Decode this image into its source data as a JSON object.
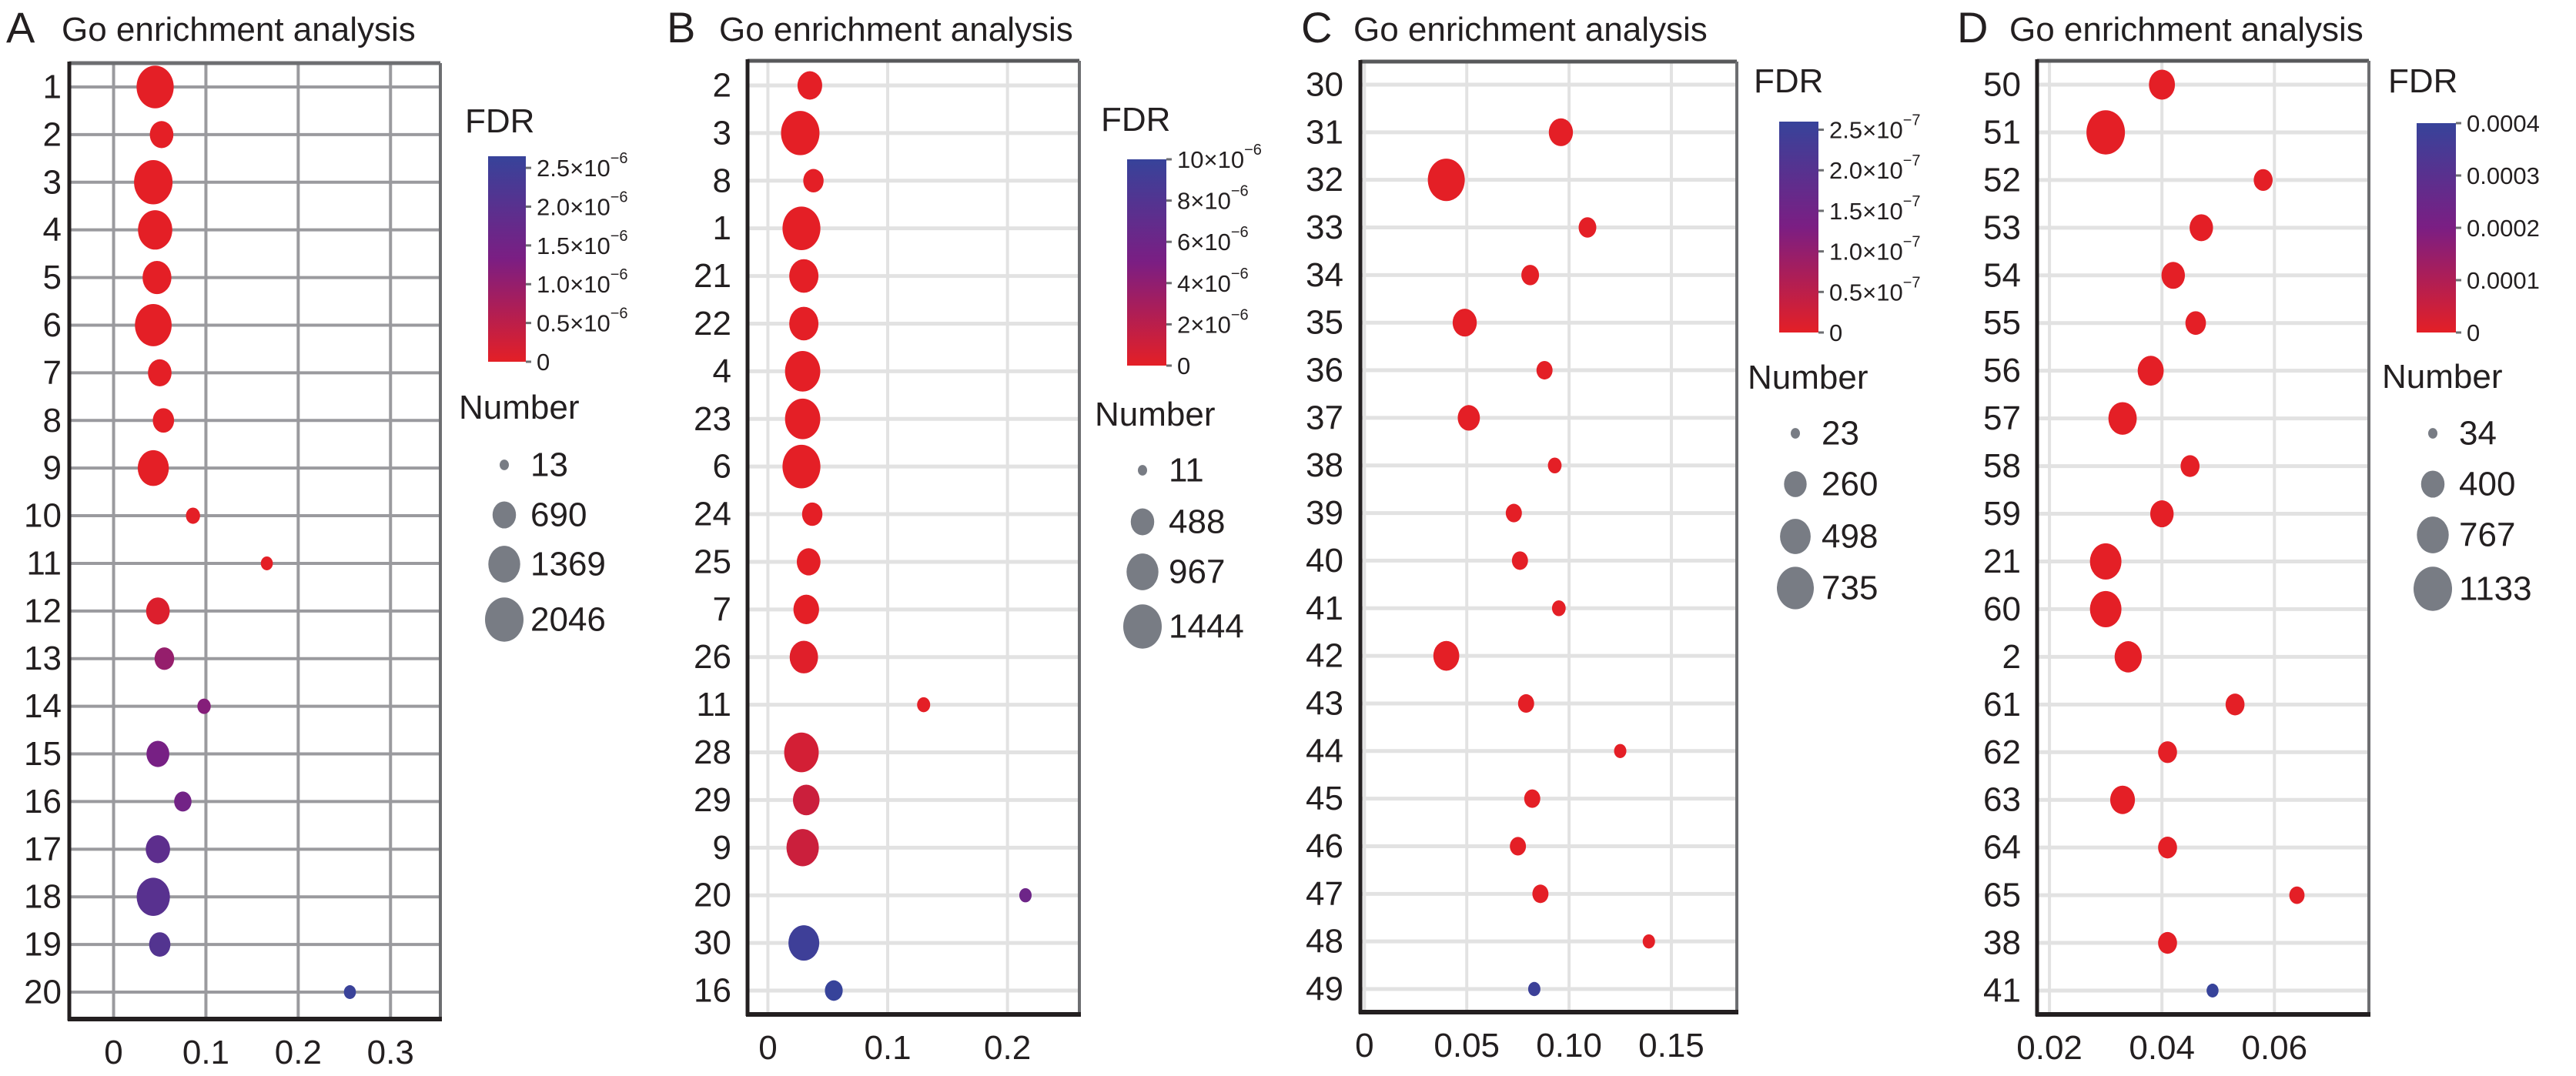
{
  "figure": {
    "panels": [
      "A",
      "B",
      "C",
      "D"
    ]
  },
  "chart_data": [
    {
      "type": "scatter",
      "panel": "A",
      "title": "Go enrichment analysis",
      "xlabel": "",
      "ylabel": "",
      "x_ticks": [
        "0",
        "0.1",
        "0.2",
        "0.3"
      ],
      "x_tick_values": [
        0,
        0.1,
        0.2,
        0.3
      ],
      "xlim": [
        -0.048,
        0.354
      ],
      "grid": true,
      "grid_style": "dark",
      "categories": [
        "1",
        "2",
        "3",
        "4",
        "5",
        "6",
        "7",
        "8",
        "9",
        "10",
        "11",
        "12",
        "13",
        "14",
        "15",
        "16",
        "17",
        "18",
        "19",
        "20"
      ],
      "x": [
        0.045,
        0.052,
        0.043,
        0.045,
        0.047,
        0.043,
        0.05,
        0.054,
        0.043,
        0.086,
        0.166,
        0.048,
        0.055,
        0.098,
        0.048,
        0.075,
        0.048,
        0.043,
        0.05,
        0.256
      ],
      "number": [
        1900,
        700,
        2046,
        1600,
        1100,
        1850,
        700,
        550,
        1300,
        180,
        100,
        700,
        450,
        150,
        650,
        330,
        750,
        1500,
        550,
        100
      ],
      "fdr": [
        0,
        0,
        0,
        0,
        0,
        0,
        0,
        0,
        0,
        0,
        0,
        1e-07,
        1e-06,
        1.2e-06,
        1.4e-06,
        1.5e-06,
        1.9e-06,
        2e-06,
        2.1e-06,
        2.6e-06
      ],
      "color_legend": {
        "title": "FDR",
        "range": [
          0,
          2.65e-06
        ],
        "ticks": [
          0,
          5e-07,
          1e-06,
          1.5e-06,
          2e-06,
          2.5e-06
        ],
        "tick_mantissa": [
          "0",
          "0.5×10",
          "1.0×10",
          "1.5×10",
          "2.0×10",
          "2.5×10"
        ],
        "tick_exponent": [
          "",
          "−6",
          "−6",
          "−6",
          "−6",
          "−6"
        ],
        "low_color": "#e41f26",
        "mid_color": "#7b1e83",
        "high_color": "#37439a",
        "placement": "right"
      },
      "size_legend": {
        "title": "Number",
        "values": [
          13,
          690,
          1369,
          2046
        ],
        "labels": [
          "13",
          "690",
          "1369",
          "2046"
        ],
        "color": "#787c84"
      }
    },
    {
      "type": "scatter",
      "panel": "B",
      "title": "Go enrichment analysis",
      "xlabel": "",
      "ylabel": "",
      "x_ticks": [
        "0",
        "0.1",
        "0.2"
      ],
      "x_tick_values": [
        0,
        0.1,
        0.2
      ],
      "xlim": [
        -0.017,
        0.26
      ],
      "grid": true,
      "grid_style": "light",
      "categories": [
        "2",
        "3",
        "8",
        "1",
        "21",
        "22",
        "4",
        "23",
        "6",
        "24",
        "25",
        "7",
        "26",
        "11",
        "28",
        "29",
        "9",
        "20",
        "30",
        "16"
      ],
      "x": [
        0.035,
        0.027,
        0.038,
        0.028,
        0.03,
        0.03,
        0.029,
        0.029,
        0.028,
        0.037,
        0.034,
        0.032,
        0.03,
        0.13,
        0.028,
        0.032,
        0.029,
        0.215,
        0.03,
        0.055
      ],
      "number": [
        550,
        1444,
        350,
        1400,
        800,
        800,
        1200,
        1200,
        1400,
        350,
        500,
        600,
        750,
        100,
        1150,
        650,
        1000,
        80,
        900,
        250
      ],
      "fdr": [
        0,
        0,
        0,
        0,
        0,
        0,
        0,
        0,
        0,
        0,
        0,
        0,
        2e-07,
        0,
        8e-07,
        1.2e-06,
        1.2e-06,
        6e-06,
        9.5e-06,
        1e-05
      ],
      "color_legend": {
        "title": "FDR",
        "range": [
          0,
          1e-05
        ],
        "ticks": [
          0,
          2e-06,
          4e-06,
          6e-06,
          8e-06,
          1e-05
        ],
        "tick_mantissa": [
          "0",
          "2×10",
          "4×10",
          "6×10",
          "8×10",
          "10×10"
        ],
        "tick_exponent": [
          "",
          "−6",
          "−6",
          "−6",
          "−6",
          "−6"
        ],
        "low_color": "#e41f26",
        "mid_color": "#7b1e83",
        "high_color": "#37439a",
        "placement": "right"
      },
      "size_legend": {
        "title": "Number",
        "values": [
          11,
          488,
          967,
          1444
        ],
        "labels": [
          "11",
          "488",
          "967",
          "1444"
        ],
        "color": "#787c84"
      }
    },
    {
      "type": "scatter",
      "panel": "C",
      "title": "Go enrichment analysis",
      "xlabel": "",
      "ylabel": "",
      "x_ticks": [
        "0",
        "0.05",
        "0.10",
        "0.15"
      ],
      "x_tick_values": [
        0,
        0.05,
        0.1,
        0.15
      ],
      "xlim": [
        -0.002,
        0.182
      ],
      "grid": true,
      "grid_style": "light",
      "categories": [
        "30",
        "31",
        "32",
        "33",
        "34",
        "35",
        "36",
        "37",
        "38",
        "39",
        "40",
        "41",
        "42",
        "43",
        "44",
        "45",
        "46",
        "47",
        "48",
        "49"
      ],
      "x": [
        null,
        0.096,
        0.04,
        0.109,
        0.081,
        0.049,
        0.088,
        0.051,
        0.093,
        0.073,
        0.076,
        0.095,
        0.04,
        0.079,
        0.125,
        0.082,
        0.075,
        0.086,
        0.139,
        0.083
      ],
      "number": [
        null,
        300,
        735,
        150,
        150,
        300,
        120,
        250,
        80,
        120,
        120,
        80,
        350,
        120,
        60,
        120,
        120,
        120,
        60,
        60
      ],
      "fdr": [
        null,
        0,
        0,
        0,
        0,
        0,
        0,
        0,
        0,
        0,
        0,
        0,
        0,
        0,
        0,
        0,
        0,
        0,
        0,
        2.5e-07
      ],
      "color_legend": {
        "title": "FDR",
        "range": [
          0,
          2.6e-07
        ],
        "ticks": [
          0,
          5e-08,
          1e-07,
          1.5e-07,
          2e-07,
          2.5e-07
        ],
        "tick_mantissa": [
          "0",
          "0.5×10",
          "1.0×10",
          "1.5×10",
          "2.0×10",
          "2.5×10"
        ],
        "tick_exponent": [
          "",
          "−7",
          "−7",
          "−7",
          "−7",
          "−7"
        ],
        "low_color": "#e41f26",
        "mid_color": "#7b1e83",
        "high_color": "#37439a",
        "placement": "right"
      },
      "size_legend": {
        "title": "Number",
        "values": [
          23,
          260,
          498,
          735
        ],
        "labels": [
          "23",
          "260",
          "498",
          "735"
        ],
        "color": "#787c84"
      }
    },
    {
      "type": "scatter",
      "panel": "D",
      "title": "Go enrichment analysis",
      "xlabel": "",
      "ylabel": "",
      "x_ticks": [
        "0.02",
        "0.04",
        "0.06"
      ],
      "x_tick_values": [
        0.02,
        0.04,
        0.06
      ],
      "xlim": [
        0.0178,
        0.0768
      ],
      "grid": true,
      "grid_style": "light",
      "categories": [
        "50",
        "51",
        "52",
        "53",
        "54",
        "55",
        "56",
        "57",
        "58",
        "59",
        "21",
        "60",
        "2",
        "61",
        "62",
        "63",
        "64",
        "65",
        "38",
        "41"
      ],
      "x": [
        0.04,
        0.03,
        0.058,
        0.047,
        0.042,
        0.046,
        0.038,
        0.033,
        0.045,
        0.04,
        0.03,
        0.03,
        0.034,
        0.053,
        0.041,
        0.033,
        0.041,
        0.064,
        0.041,
        0.049
      ],
      "number": [
        500,
        1133,
        250,
        400,
        400,
        300,
        500,
        600,
        250,
        400,
        750,
        750,
        550,
        250,
        250,
        450,
        250,
        150,
        250,
        80
      ],
      "fdr": [
        0,
        0,
        0,
        0,
        0,
        0,
        0,
        0,
        0,
        0,
        0,
        0,
        0,
        0,
        0,
        0,
        0,
        0,
        0,
        0.0004
      ],
      "color_legend": {
        "title": "FDR",
        "range": [
          0,
          0.0004
        ],
        "ticks": [
          0,
          0.0001,
          0.0002,
          0.0003,
          0.0004
        ],
        "tick_mantissa": [
          "0",
          "0.0001",
          "0.0002",
          "0.0003",
          "0.0004"
        ],
        "tick_exponent": [
          "",
          "",
          "",
          "",
          ""
        ],
        "low_color": "#e41f26",
        "mid_color": "#7b1e83",
        "high_color": "#37439a",
        "placement": "right"
      },
      "size_legend": {
        "title": "Number",
        "values": [
          34,
          400,
          767,
          1133
        ],
        "labels": [
          "34",
          "400",
          "767",
          "1133"
        ],
        "color": "#787c84"
      }
    }
  ]
}
